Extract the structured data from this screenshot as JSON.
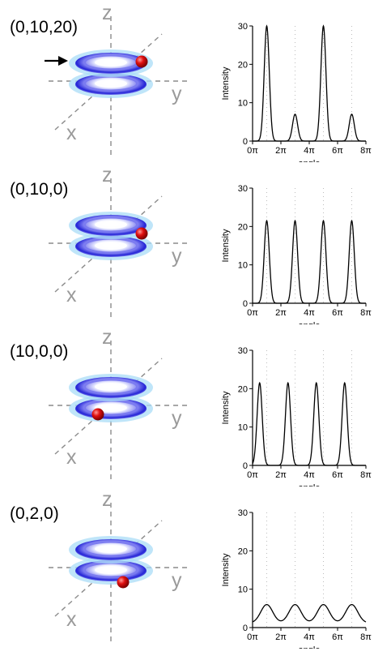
{
  "panels": [
    {
      "coord_label": "(0,10,20)",
      "arrow": true,
      "particle": {
        "x": 175,
        "y": 76
      },
      "chart_data": {
        "type": "line",
        "xlabel": "angle",
        "ylabel": "Intensity",
        "xticks": [
          "0π",
          "2π",
          "4π",
          "6π",
          "8π"
        ],
        "yticks": [
          0,
          10,
          20,
          30
        ],
        "xlim": [
          0,
          8
        ],
        "ylim": [
          0,
          30
        ],
        "peak_width": 0.18,
        "baseline": 0,
        "peaks": [
          [
            1,
            30
          ],
          [
            3,
            7
          ],
          [
            5,
            30
          ],
          [
            7,
            7
          ]
        ]
      }
    },
    {
      "coord_label": "(0,10,0)",
      "arrow": false,
      "particle": {
        "x": 175,
        "y": 88
      },
      "chart_data": {
        "type": "line",
        "xlabel": "angle",
        "ylabel": "Intensity",
        "xticks": [
          "0π",
          "2π",
          "4π",
          "6π",
          "8π"
        ],
        "yticks": [
          0,
          10,
          20,
          30
        ],
        "xlim": [
          0,
          8
        ],
        "ylim": [
          0,
          30
        ],
        "peak_width": 0.18,
        "baseline": 0,
        "peaks": [
          [
            1,
            21.5
          ],
          [
            3,
            21.5
          ],
          [
            5,
            21.5
          ],
          [
            7,
            21.5
          ]
        ]
      }
    },
    {
      "coord_label": "(10,0,0)",
      "arrow": false,
      "particle": {
        "x": 121,
        "y": 111
      },
      "chart_data": {
        "type": "line",
        "xlabel": "angle",
        "ylabel": "Intensity",
        "xticks": [
          "0π",
          "2π",
          "4π",
          "6π",
          "8π"
        ],
        "yticks": [
          0,
          10,
          20,
          30
        ],
        "xlim": [
          0,
          8
        ],
        "ylim": [
          0,
          30
        ],
        "peak_width": 0.18,
        "baseline": 0,
        "peaks": [
          [
            0.5,
            21.5
          ],
          [
            2.5,
            21.5
          ],
          [
            4.5,
            21.5
          ],
          [
            6.5,
            21.5
          ]
        ]
      }
    },
    {
      "coord_label": "(0,2,0)",
      "arrow": false,
      "particle": {
        "x": 152,
        "y": 118
      },
      "chart_data": {
        "type": "line",
        "xlabel": "angle",
        "ylabel": "Intensity",
        "xticks": [
          "0π",
          "2π",
          "4π",
          "6π",
          "8π"
        ],
        "yticks": [
          0,
          10,
          20,
          30
        ],
        "xlim": [
          0,
          8
        ],
        "ylim": [
          0,
          30
        ],
        "peak_width": 0.42,
        "baseline": 1.2,
        "peaks": [
          [
            1,
            6
          ],
          [
            3,
            6
          ],
          [
            5,
            6
          ],
          [
            7,
            6
          ]
        ]
      }
    }
  ],
  "axis_names": {
    "x": "x",
    "y": "y",
    "z": "z"
  },
  "colors": {
    "particle": "#e01010",
    "ring_dark": "#2424d6",
    "ring_mid": "#7b7bf0",
    "ring_light": "#cfd0ff",
    "halo": "#a9dcf7",
    "axis": "#8c8c8c"
  }
}
